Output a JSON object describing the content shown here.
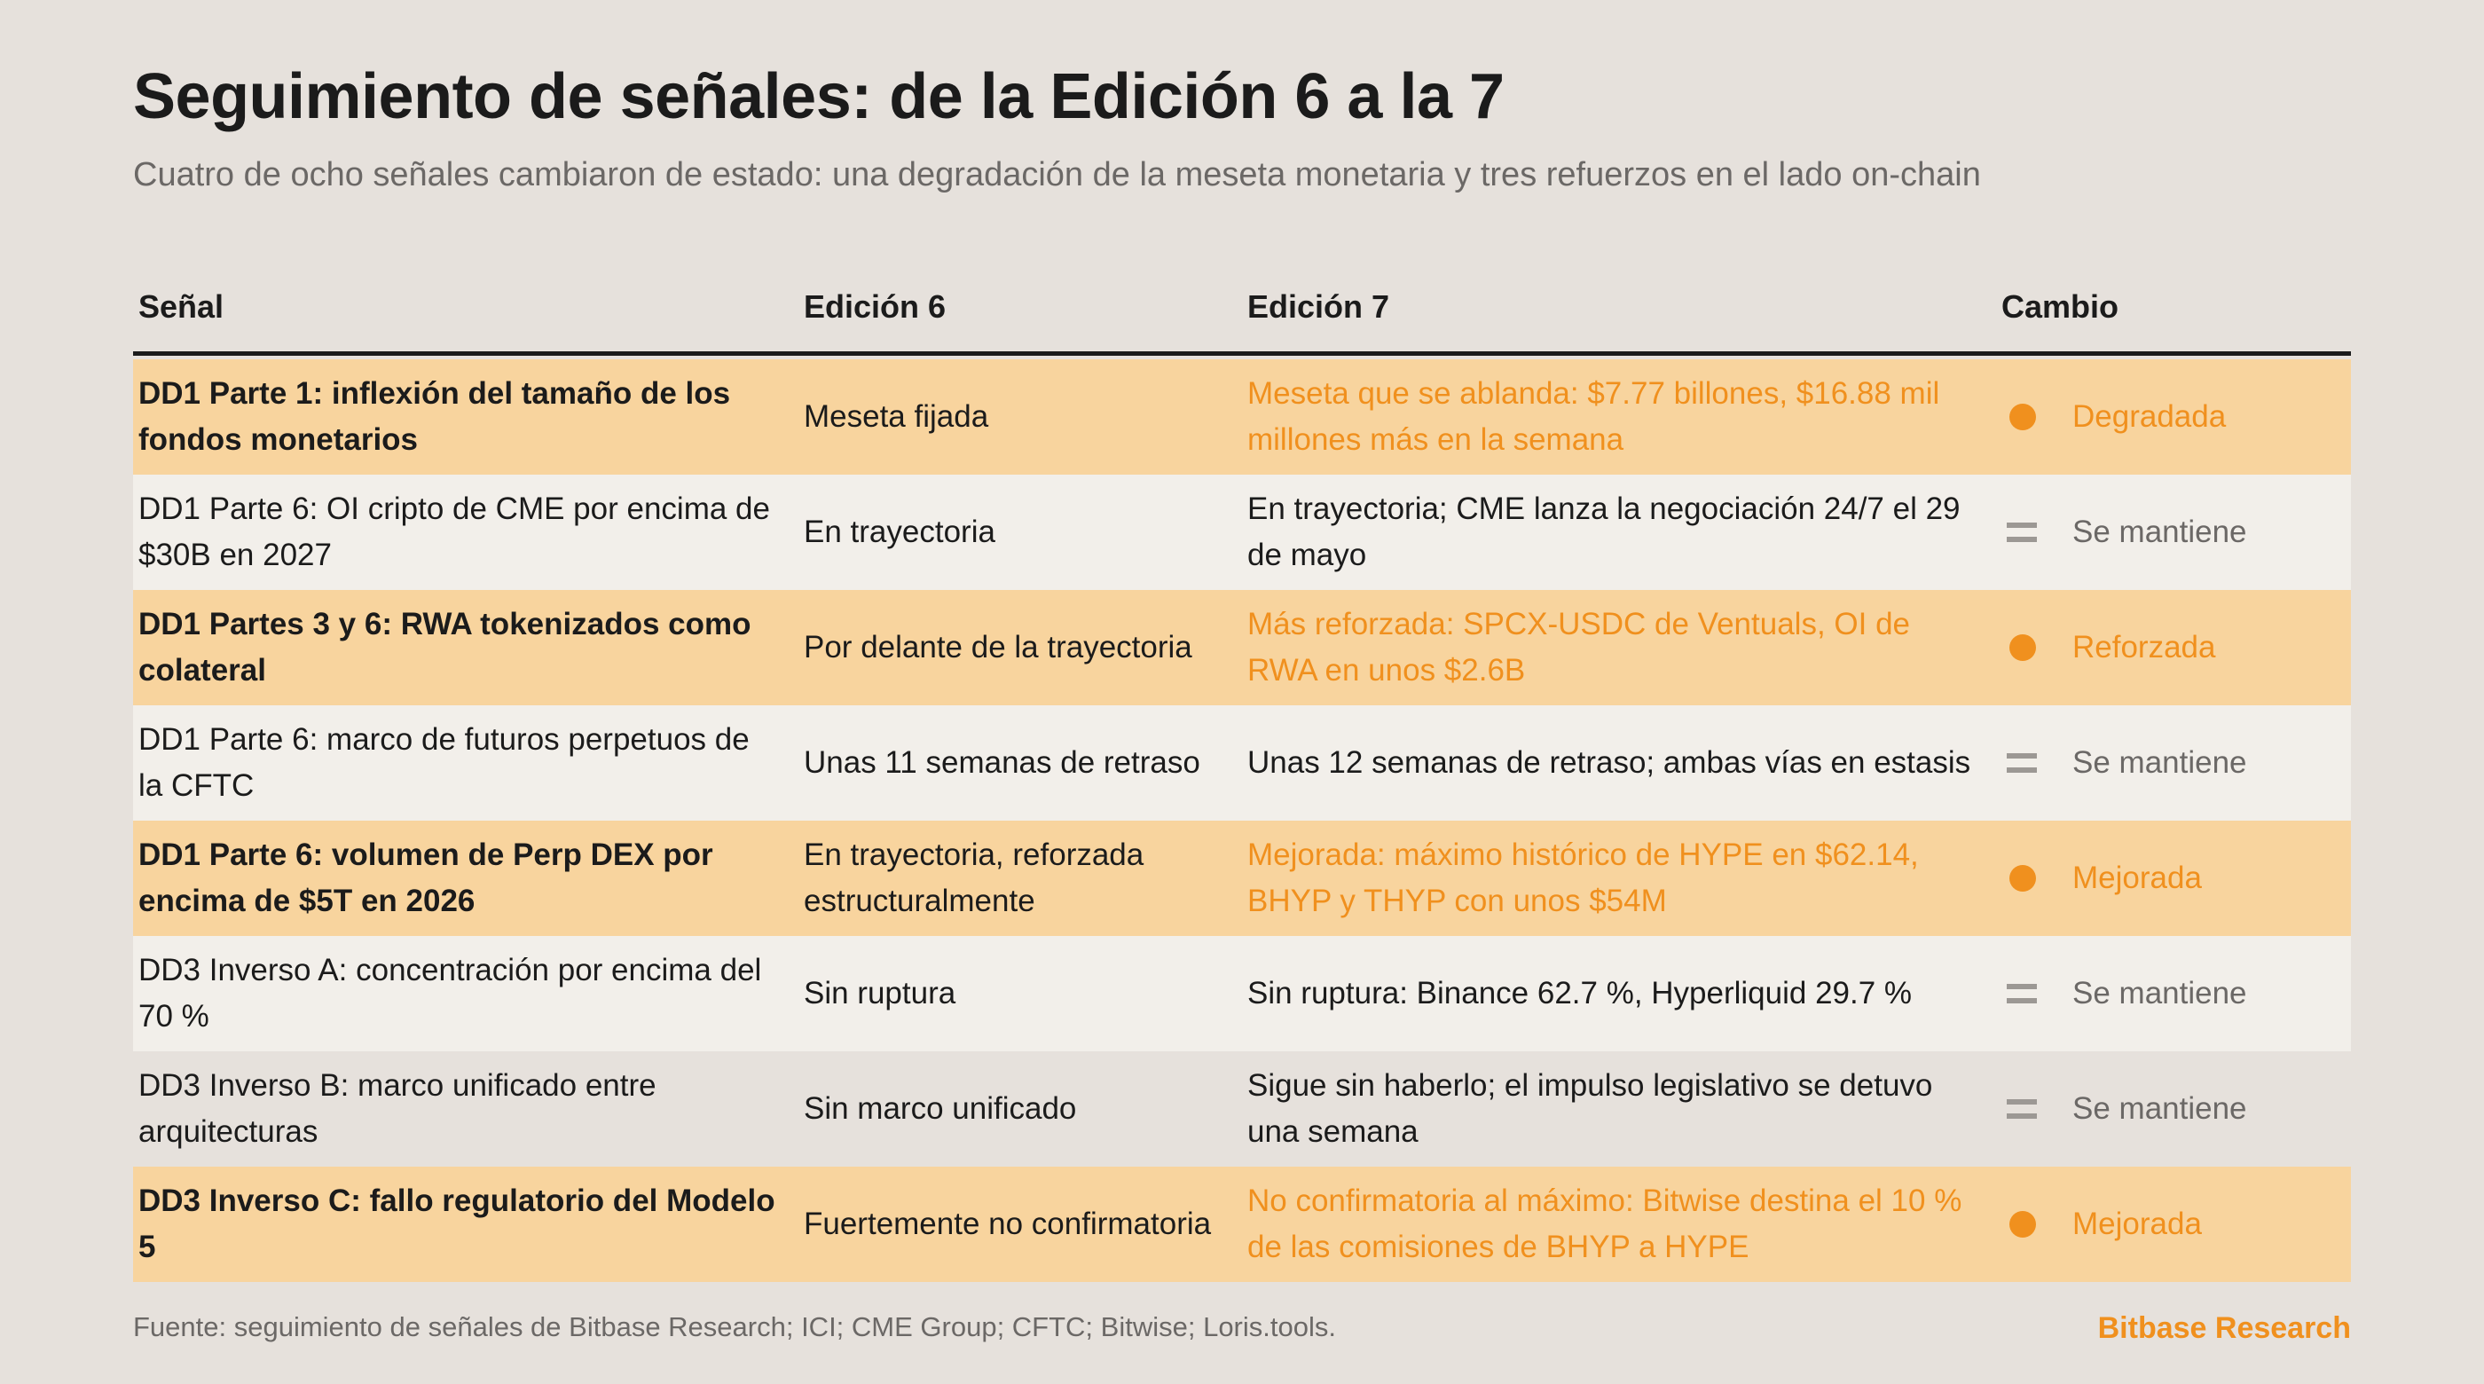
{
  "title": "Seguimiento de señales: de la Edición 6 a la 7",
  "subtitle": "Cuatro de ocho señales cambiaron de estado: una degradación de la meseta monetaria y tres refuerzos en el lado on-chain",
  "colors": {
    "background": "#e6e1dc",
    "highlight_row": "#f8d49e",
    "light_row": "#f2efea",
    "accent": "#f0901e",
    "neutral_mark": "#9c9894"
  },
  "table": {
    "headers": [
      "Señal",
      "Edición 6",
      "Edición 7",
      "Cambio"
    ],
    "rows": [
      {
        "signal": "DD1 Parte 1: inflexión del tamaño de los fondos monetarios",
        "edition6": "Meseta fijada",
        "edition7": "Meseta que se ablanda: $7.77 billones, $16.88 mil millones más en la semana",
        "change": "Degradada",
        "change_icon": "orange-dot-icon",
        "style": "highlight"
      },
      {
        "signal": "DD1 Parte 6: OI cripto de CME por encima de $30B en 2027",
        "edition6": "En trayectoria",
        "edition7": "En trayectoria; CME lanza la negociación 24/7 el 29 de mayo",
        "change": "Se mantiene",
        "change_icon": "equals-icon",
        "style": "light"
      },
      {
        "signal": "DD1 Partes 3 y 6: RWA tokenizados como colateral",
        "edition6": "Por delante de la trayectoria",
        "edition7": "Más reforzada: SPCX-USDC de Ventuals, OI de RWA en unos $2.6B",
        "change": "Reforzada",
        "change_icon": "orange-dot-icon",
        "style": "highlight"
      },
      {
        "signal": "DD1 Parte 6: marco de futuros perpetuos de la CFTC",
        "edition6": "Unas 11 semanas de retraso",
        "edition7": "Unas 12 semanas de retraso; ambas vías en estasis",
        "change": "Se mantiene",
        "change_icon": "equals-icon",
        "style": "light"
      },
      {
        "signal": "DD1 Parte 6: volumen de Perp DEX por encima de $5T en 2026",
        "edition6": "En trayectoria, reforzada estructuralmente",
        "edition7": "Mejorada: máximo histórico de HYPE en $62.14, BHYP y THYP con unos $54M",
        "change": "Mejorada",
        "change_icon": "orange-dot-icon",
        "style": "highlight"
      },
      {
        "signal": "DD3 Inverso A: concentración por encima del 70 %",
        "edition6": "Sin ruptura",
        "edition7": "Sin ruptura: Binance 62.7 %, Hyperliquid 29.7 %",
        "change": "Se mantiene",
        "change_icon": "equals-icon",
        "style": "light"
      },
      {
        "signal": "DD3 Inverso B: marco unificado entre arquitecturas",
        "edition6": "Sin marco unificado",
        "edition7": "Sigue sin haberlo; el impulso legislativo se detuvo una semana",
        "change": "Se mantiene",
        "change_icon": "equals-icon",
        "style": "plain"
      },
      {
        "signal": "DD3 Inverso C: fallo regulatorio del Modelo 5",
        "edition6": "Fuertemente no confirmatoria",
        "edition7": "No confirmatoria al máximo: Bitwise destina el 10 % de las comisiones de BHYP a HYPE",
        "change": "Mejorada",
        "change_icon": "orange-dot-icon",
        "style": "highlight"
      }
    ]
  },
  "footer": {
    "source": "Fuente: seguimiento de señales de Bitbase Research; ICI; CME Group; CFTC; Bitwise; Loris.tools.",
    "brand": "Bitbase Research"
  }
}
